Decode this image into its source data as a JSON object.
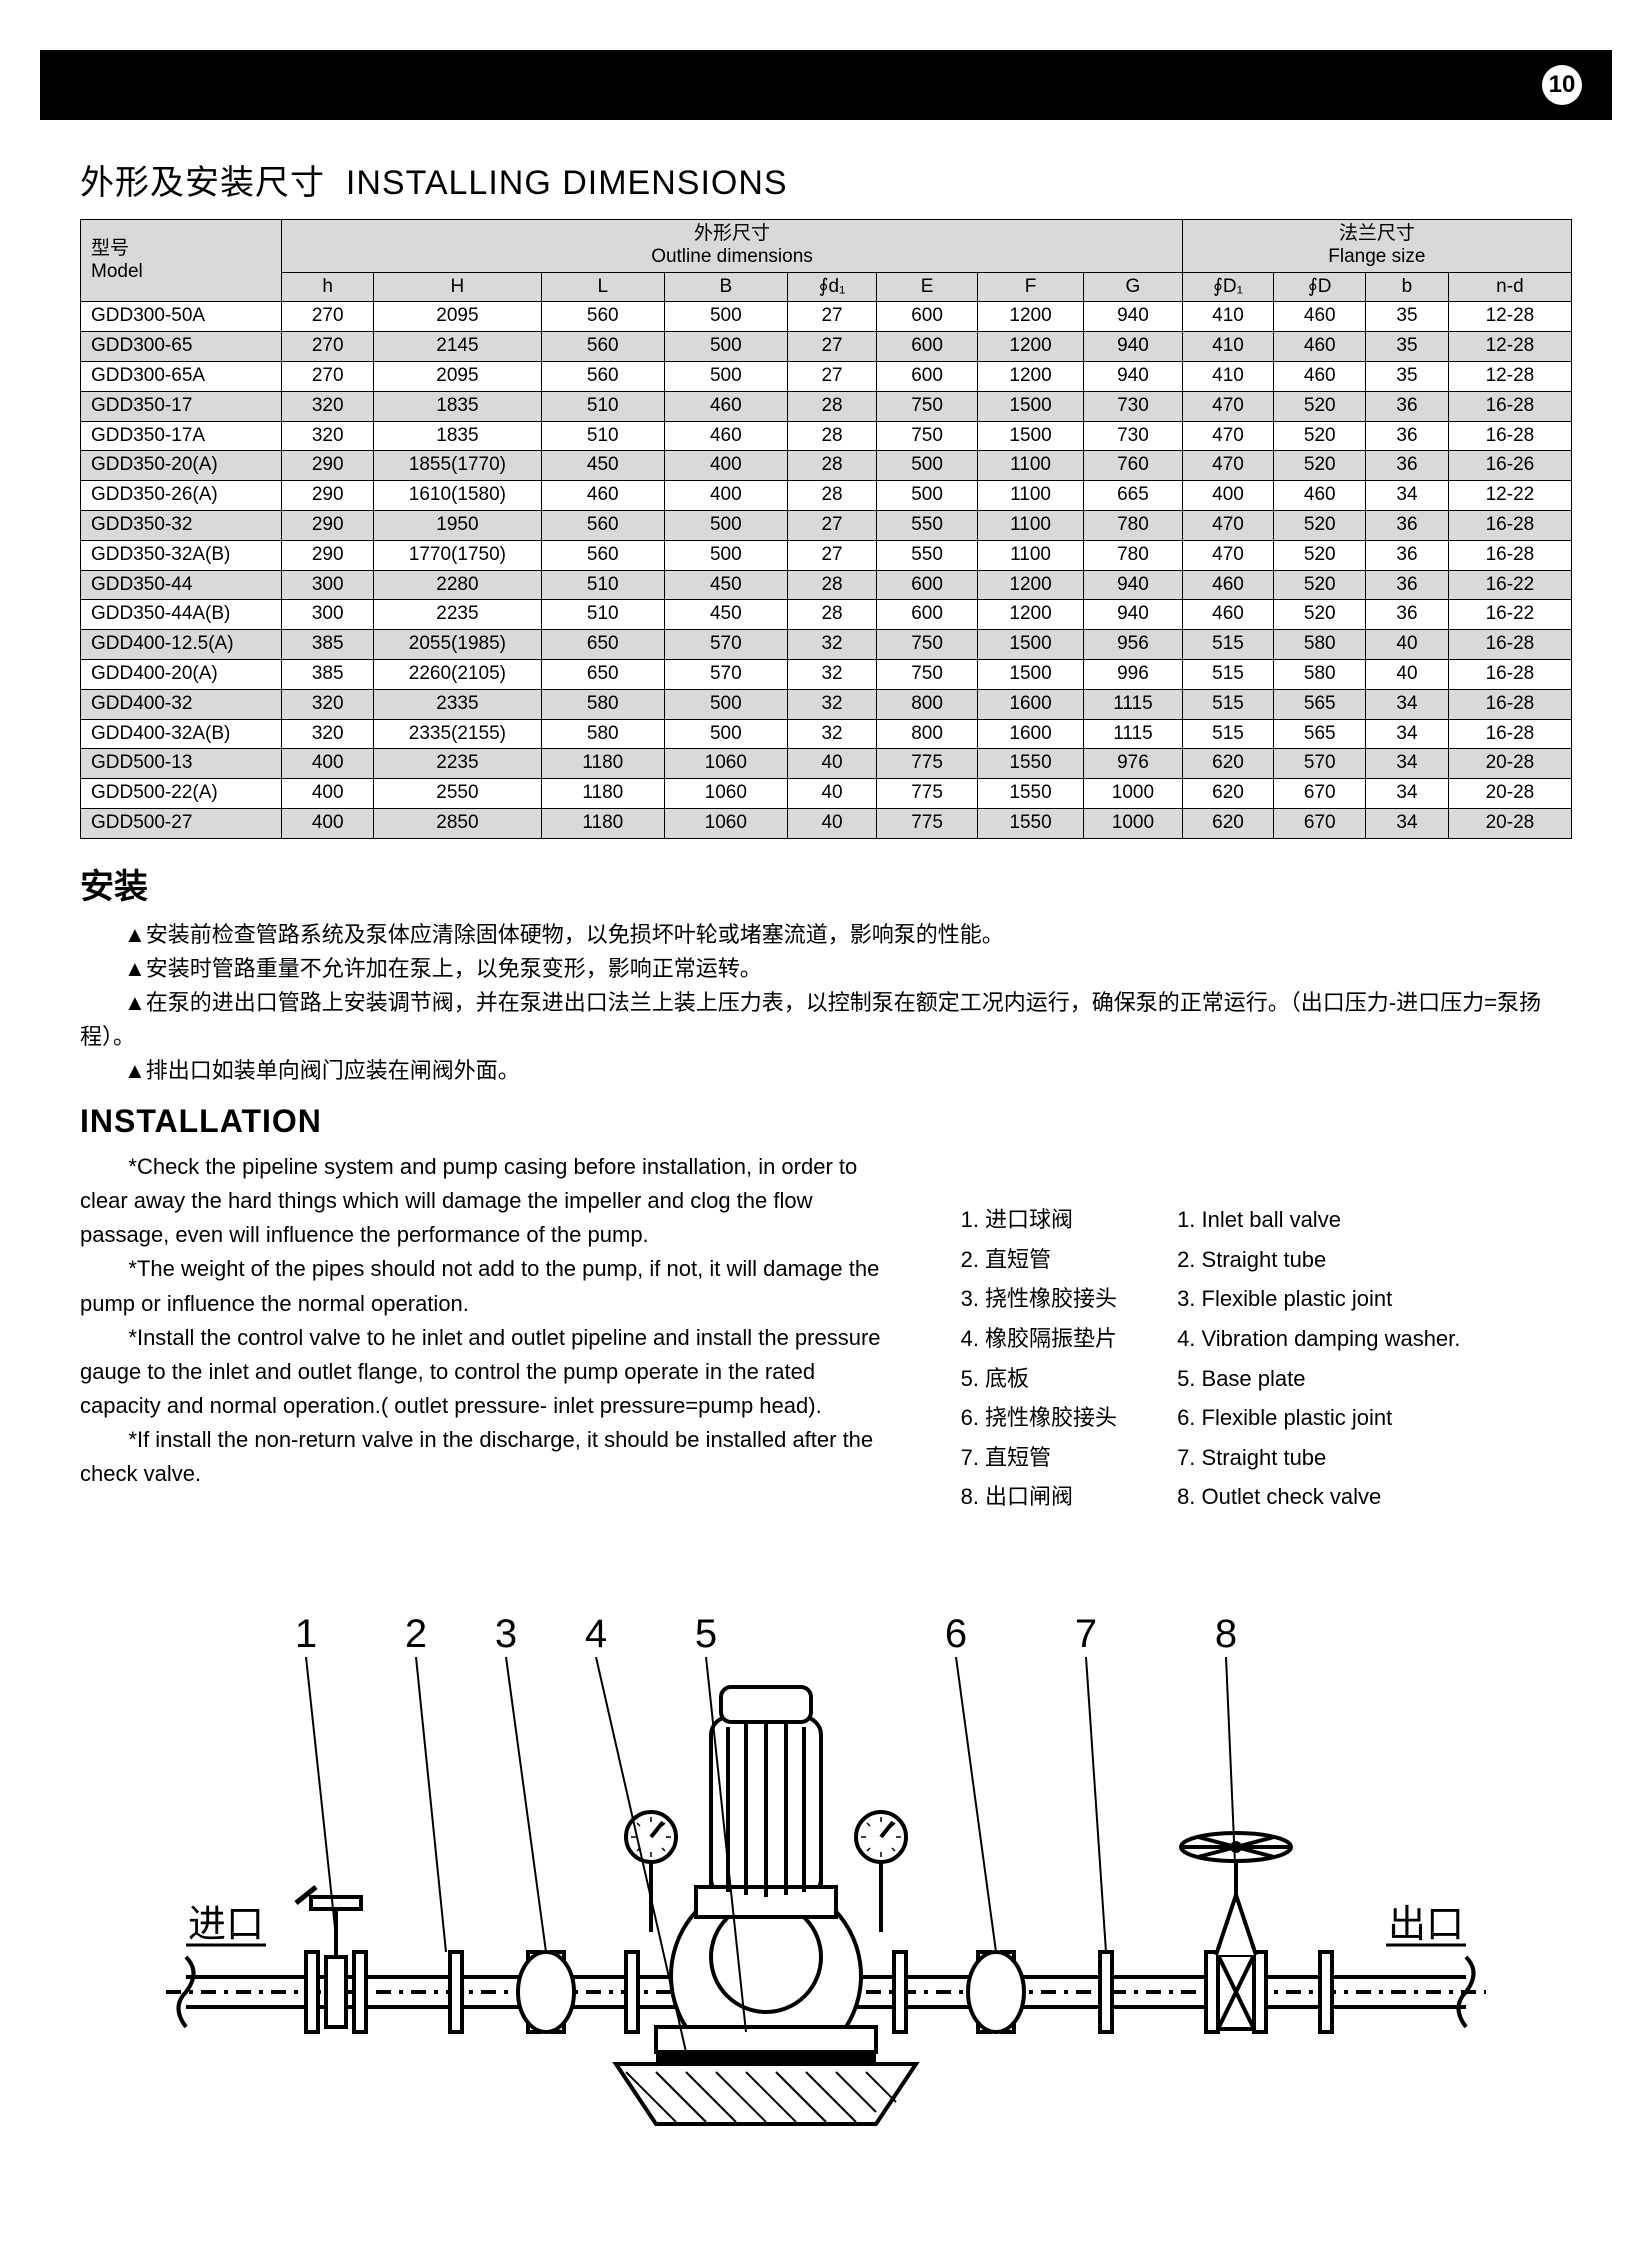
{
  "page_number": "10",
  "title_cn": "外形及安装尺寸",
  "title_en": "INSTALLING DIMENSIONS",
  "table": {
    "header_group_outline_cn": "外形尺寸",
    "header_group_outline_en": "Outline dimensions",
    "header_group_flange_cn": "法兰尺寸",
    "header_group_flange_en": "Flange size",
    "header_model_cn": "型号",
    "header_model_en": "Model",
    "columns": [
      "h",
      "H",
      "L",
      "B",
      "∮d₁",
      "E",
      "F",
      "G",
      "∮D₁",
      "∮D",
      "b",
      "n-d"
    ],
    "col_widths": [
      "180",
      "82",
      "150",
      "110",
      "110",
      "80",
      "90",
      "95",
      "88",
      "82",
      "82",
      "74",
      "110"
    ],
    "rows": [
      [
        "GDD300-50A",
        "270",
        "2095",
        "560",
        "500",
        "27",
        "600",
        "1200",
        "940",
        "410",
        "460",
        "35",
        "12-28"
      ],
      [
        "GDD300-65",
        "270",
        "2145",
        "560",
        "500",
        "27",
        "600",
        "1200",
        "940",
        "410",
        "460",
        "35",
        "12-28"
      ],
      [
        "GDD300-65A",
        "270",
        "2095",
        "560",
        "500",
        "27",
        "600",
        "1200",
        "940",
        "410",
        "460",
        "35",
        "12-28"
      ],
      [
        "GDD350-17",
        "320",
        "1835",
        "510",
        "460",
        "28",
        "750",
        "1500",
        "730",
        "470",
        "520",
        "36",
        "16-28"
      ],
      [
        "GDD350-17A",
        "320",
        "1835",
        "510",
        "460",
        "28",
        "750",
        "1500",
        "730",
        "470",
        "520",
        "36",
        "16-28"
      ],
      [
        "GDD350-20(A)",
        "290",
        "1855(1770)",
        "450",
        "400",
        "28",
        "500",
        "1100",
        "760",
        "470",
        "520",
        "36",
        "16-26"
      ],
      [
        "GDD350-26(A)",
        "290",
        "1610(1580)",
        "460",
        "400",
        "28",
        "500",
        "1100",
        "665",
        "400",
        "460",
        "34",
        "12-22"
      ],
      [
        "GDD350-32",
        "290",
        "1950",
        "560",
        "500",
        "27",
        "550",
        "1100",
        "780",
        "470",
        "520",
        "36",
        "16-28"
      ],
      [
        "GDD350-32A(B)",
        "290",
        "1770(1750)",
        "560",
        "500",
        "27",
        "550",
        "1100",
        "780",
        "470",
        "520",
        "36",
        "16-28"
      ],
      [
        "GDD350-44",
        "300",
        "2280",
        "510",
        "450",
        "28",
        "600",
        "1200",
        "940",
        "460",
        "520",
        "36",
        "16-22"
      ],
      [
        "GDD350-44A(B)",
        "300",
        "2235",
        "510",
        "450",
        "28",
        "600",
        "1200",
        "940",
        "460",
        "520",
        "36",
        "16-22"
      ],
      [
        "GDD400-12.5(A)",
        "385",
        "2055(1985)",
        "650",
        "570",
        "32",
        "750",
        "1500",
        "956",
        "515",
        "580",
        "40",
        "16-28"
      ],
      [
        "GDD400-20(A)",
        "385",
        "2260(2105)",
        "650",
        "570",
        "32",
        "750",
        "1500",
        "996",
        "515",
        "580",
        "40",
        "16-28"
      ],
      [
        "GDD400-32",
        "320",
        "2335",
        "580",
        "500",
        "32",
        "800",
        "1600",
        "1115",
        "515",
        "565",
        "34",
        "16-28"
      ],
      [
        "GDD400-32A(B)",
        "320",
        "2335(2155)",
        "580",
        "500",
        "32",
        "800",
        "1600",
        "1115",
        "515",
        "565",
        "34",
        "16-28"
      ],
      [
        "GDD500-13",
        "400",
        "2235",
        "1180",
        "1060",
        "40",
        "775",
        "1550",
        "976",
        "620",
        "570",
        "34",
        "20-28"
      ],
      [
        "GDD500-22(A)",
        "400",
        "2550",
        "1180",
        "1060",
        "40",
        "775",
        "1550",
        "1000",
        "620",
        "670",
        "34",
        "20-28"
      ],
      [
        "GDD500-27",
        "400",
        "2850",
        "1180",
        "1060",
        "40",
        "775",
        "1550",
        "1000",
        "620",
        "670",
        "34",
        "20-28"
      ]
    ]
  },
  "install_title_cn": "安装",
  "install_body_cn": [
    "▲安装前检查管路系统及泵体应清除固体硬物，以免损坏叶轮或堵塞流道，影响泵的性能。",
    "▲安装时管路重量不允许加在泵上，以免泵变形，影响正常运转。",
    "▲在泵的进出口管路上安装调节阀，并在泵进出口法兰上装上压力表，以控制泵在额定工况内运行，确保泵的正常运行。（出口压力-进口压力=泵扬程）。",
    "▲排出口如装单向阀门应装在闸阀外面。"
  ],
  "install_title_en": "INSTALLATION",
  "install_body_en": [
    "*Check the pipeline system and pump casing before installation, in order to clear away the hard things which will damage the impeller and clog the flow passage, even will influence the performance of the pump.",
    "*The weight of the pipes should not add to the pump, if not, it will damage the pump or influence the normal operation.",
    "*Install the control valve to he inlet and outlet pipeline and install the pressure gauge to the inlet and outlet flange, to control the pump operate in the rated capacity and normal operation.( outlet pressure- inlet pressure=pump head).",
    "*If install the non-return valve in the discharge, it should be installed after the check valve."
  ],
  "legend_cn": [
    "1. 进口球阀",
    "2. 直短管",
    "3. 挠性橡胶接头",
    "4. 橡胶隔振垫片",
    "5. 底板",
    "6. 挠性橡胶接头",
    "7. 直短管",
    "8. 出口闸阀"
  ],
  "legend_en": [
    "1. Inlet ball valve",
    "2. Straight tube",
    "3. Flexible plastic joint",
    "4. Vibration damping washer.",
    "5. Base plate",
    "6. Flexible plastic joint",
    "7. Straight tube",
    "8. Outlet check valve"
  ],
  "diagram": {
    "inlet_label": "进口",
    "outlet_label": "出口",
    "callouts": [
      "1",
      "2",
      "3",
      "4",
      "5",
      "6",
      "7",
      "8"
    ],
    "stroke": "#000000",
    "stroke_width": 4
  }
}
